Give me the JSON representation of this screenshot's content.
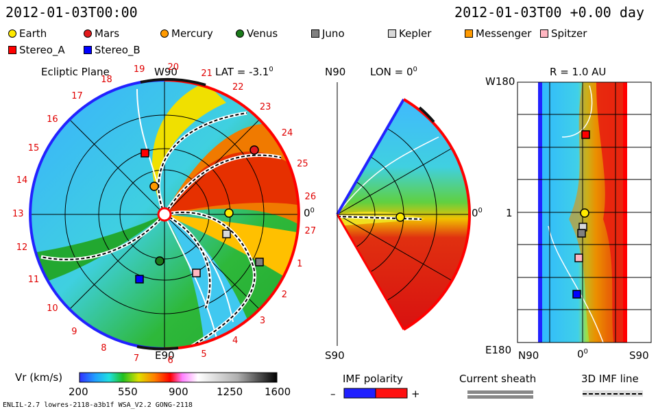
{
  "header": {
    "time_left": "2012-01-03T00:00",
    "time_right": "2012-01-03T00 +0.00 day"
  },
  "legend": [
    {
      "name": "Earth",
      "shape": "circle",
      "color": "#ffea00"
    },
    {
      "name": "Mars",
      "shape": "circle",
      "color": "#e31a1c"
    },
    {
      "name": "Mercury",
      "shape": "circle",
      "color": "#ff9a00"
    },
    {
      "name": "Venus",
      "shape": "circle",
      "color": "#1a7a1a"
    },
    {
      "name": "Juno",
      "shape": "square",
      "color": "#808080"
    },
    {
      "name": "Kepler",
      "shape": "square",
      "color": "#d9d9d9"
    },
    {
      "name": "Messenger",
      "shape": "square",
      "color": "#ff9a00"
    },
    {
      "name": "Spitzer",
      "shape": "square",
      "color": "#ffb6c1"
    },
    {
      "name": "Stereo_A",
      "shape": "square",
      "color": "#ff0000"
    },
    {
      "name": "Stereo_B",
      "shape": "square",
      "color": "#0000ff"
    }
  ],
  "ecliptic": {
    "title": "Ecliptic Plane",
    "top_label": "W90",
    "bottom_label": "E90",
    "right_label": "0",
    "right_label_sup": "0",
    "lat_label": "LAT = -3.1",
    "lat_sup": "0",
    "carrington": [
      "19",
      "20",
      "21",
      "22",
      "23",
      "24",
      "25",
      "26",
      "27",
      "1",
      "2",
      "3",
      "4",
      "5",
      "6",
      "7",
      "8",
      "9",
      "10",
      "11",
      "12",
      "13",
      "14",
      "15",
      "16",
      "17",
      "18"
    ]
  },
  "meridional": {
    "top_label": "N90",
    "lon_label": "LON = 0",
    "lon_sup": "0",
    "right_label": "0",
    "right_label_sup": "0",
    "bottom_label": "S90"
  },
  "map": {
    "title": "R = 1.0 AU",
    "top_left": "W180",
    "mid_left": "1",
    "bottom_left": "E180",
    "x_left": "N90",
    "x_mid": "0",
    "x_mid_sup": "0",
    "x_right": "S90"
  },
  "colorbar": {
    "label": "Vr (km/s)",
    "ticks": [
      "200",
      "550",
      "900",
      "1250",
      "1600"
    ]
  },
  "imf": {
    "label": "IMF polarity",
    "minus": "–",
    "plus": "+"
  },
  "sheath": {
    "label": "Current sheath"
  },
  "imf3d": {
    "label": "3D IMF line"
  },
  "footer": {
    "model": "ENLIL-2.7 lowres-2118-a3b1f WSA_V2.2 GONG-2118"
  }
}
